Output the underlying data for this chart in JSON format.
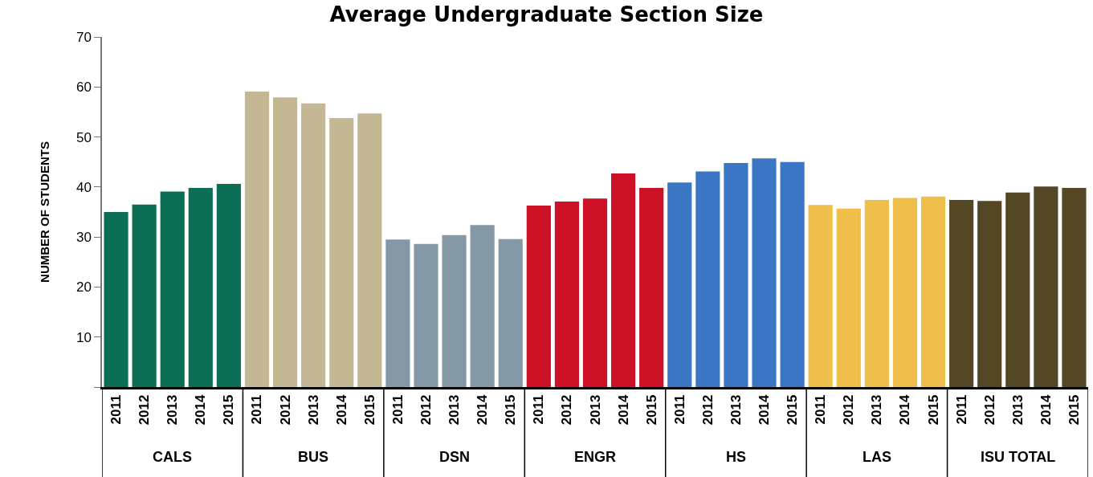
{
  "chart_data": {
    "type": "bar",
    "title": "Average Undergraduate Section Size",
    "ylabel": "NUMBER OF STUDENTS",
    "categories": [
      "2011",
      "2012",
      "2013",
      "2014",
      "2015",
      "2011",
      "2012",
      "2013",
      "2014",
      "2015",
      "2011",
      "2012",
      "2013",
      "2014",
      "2015",
      "2011",
      "2012",
      "2013",
      "2014",
      "2015",
      "2011",
      "2012",
      "2013",
      "2014",
      "2015",
      "2011",
      "2012",
      "2013",
      "2014",
      "2015",
      "2011",
      "2012",
      "2013",
      "2014",
      "2015"
    ],
    "values": [
      35.0,
      36.5,
      39.1,
      39.8,
      40.6,
      59.1,
      57.9,
      56.7,
      53.8,
      54.7,
      29.5,
      28.6,
      30.4,
      32.4,
      29.6,
      36.3,
      37.1,
      37.7,
      42.7,
      39.8,
      40.9,
      43.1,
      44.8,
      45.7,
      45.0,
      36.4,
      35.7,
      37.4,
      37.8,
      38.1,
      37.4,
      37.2,
      38.9,
      40.1,
      39.8
    ],
    "colors": [
      "#0b6e55",
      "#0b6e55",
      "#0b6e55",
      "#0b6e55",
      "#0b6e55",
      "#c4b794",
      "#c4b794",
      "#c4b794",
      "#c4b794",
      "#c4b794",
      "#8598a6",
      "#8598a6",
      "#8598a6",
      "#8598a6",
      "#8598a6",
      "#cc1126",
      "#cc1126",
      "#cc1126",
      "#cc1126",
      "#cc1126",
      "#3b76c4",
      "#3b76c4",
      "#3b76c4",
      "#3b76c4",
      "#3b76c4",
      "#f0be4a",
      "#f0be4a",
      "#f0be4a",
      "#f0be4a",
      "#f0be4a",
      "#544726",
      "#544726",
      "#544726",
      "#544726",
      "#544726"
    ],
    "annotations": [
      "CALS",
      "BUS",
      "DSN",
      "ENGR",
      "HS",
      "LAS",
      "ISU TOTAL"
    ],
    "ylim": [
      0,
      70
    ],
    "yticks": [
      {
        "value": 0,
        "label": null
      },
      10,
      20,
      30,
      40,
      50,
      60,
      70
    ]
  }
}
